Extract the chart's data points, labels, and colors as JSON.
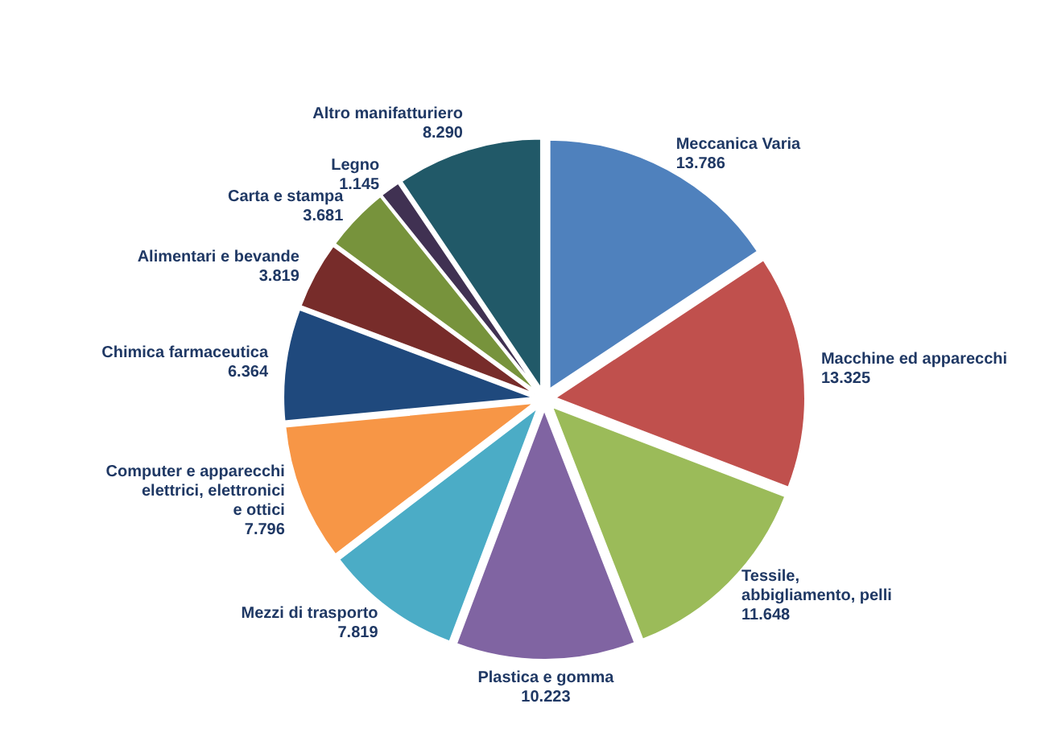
{
  "chart_data": {
    "type": "pie",
    "categories": [
      "Meccanica Varia",
      "Macchine ed apparecchi",
      "Tessile, abbigliamento, pelli",
      "Plastica e gomma",
      "Mezzi di trasporto",
      "Computer e apparecchi elettrici, elettronici e ottici",
      "Chimica farmaceutica",
      "Alimentari e bevande",
      "Carta e stampa",
      "Legno",
      "Altro manifatturiero"
    ],
    "values": [
      13786,
      13325,
      11648,
      10223,
      7819,
      7796,
      6364,
      3819,
      3681,
      1145,
      8290
    ],
    "value_labels": [
      "13.786",
      "13.325",
      "11.648",
      "10.223",
      "7.819",
      "7.796",
      "6.364",
      "3.819",
      "3.681",
      "1.145",
      "8.290"
    ],
    "colors": [
      "#4f81bd",
      "#c0504d",
      "#9bbb59",
      "#8064a2",
      "#4bacc6",
      "#f79646",
      "#1f497d",
      "#772c2a",
      "#77933c",
      "#403152",
      "#215968"
    ]
  }
}
